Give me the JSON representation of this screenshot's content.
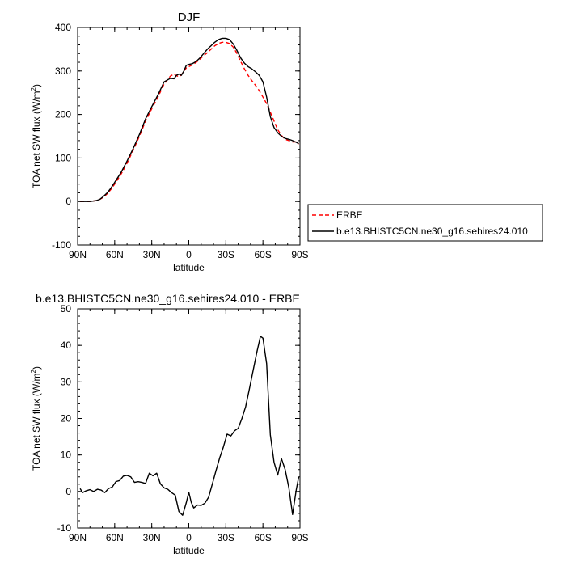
{
  "chart_data": [
    {
      "type": "line",
      "title": "DJF",
      "xlabel": "latitude",
      "ylabel_main": "TOA net SW flux (W/m",
      "ylabel_sup": "2",
      "ylabel_end": ")",
      "xlim": [
        90,
        -90
      ],
      "ylim": [
        -100,
        400
      ],
      "x_ticks": [
        90,
        60,
        30,
        0,
        -30,
        -60,
        -90
      ],
      "x_tick_labels": [
        "90N",
        "60N",
        "30N",
        "0",
        "30S",
        "60S",
        "90S"
      ],
      "y_ticks": [
        -100,
        0,
        100,
        200,
        300,
        400
      ],
      "y_tick_labels": [
        "-100",
        "0",
        "100",
        "200",
        "300",
        "400"
      ],
      "legend": {
        "position": "right",
        "entries": [
          "ERBE",
          "b.e13.BHISTC5CN.ne30_g16.sehires24.010"
        ]
      },
      "series": [
        {
          "name": "ERBE",
          "color": "#ff0000",
          "style": "dashed",
          "x": [
            88,
            85,
            80,
            75,
            72,
            69,
            66,
            63,
            60,
            55,
            50,
            45,
            40,
            35,
            30,
            25,
            20,
            15,
            12,
            10,
            8,
            6,
            4,
            2,
            0,
            -3,
            -6,
            -9,
            -12,
            -15,
            -18,
            -21,
            -24,
            -27,
            -30,
            -33,
            -36,
            -39,
            -42,
            -45,
            -48,
            -51,
            -54,
            -57,
            -60,
            -63,
            -66,
            -69,
            -72,
            -75,
            -78,
            -81,
            -84,
            -87,
            -89
          ],
          "y": [
            0,
            0,
            0,
            2,
            5,
            10,
            18,
            28,
            40,
            62,
            88,
            118,
            150,
            185,
            213,
            240,
            270,
            288,
            293,
            289,
            287,
            291,
            300,
            307,
            310,
            314,
            320,
            327,
            335,
            342,
            350,
            358,
            363,
            366,
            366,
            363,
            355,
            340,
            322,
            305,
            290,
            278,
            267,
            255,
            240,
            225,
            205,
            185,
            165,
            152,
            143,
            140,
            137,
            137,
            132
          ]
        },
        {
          "name": "b.e13.BHISTC5CN.ne30_g16.sehires24.010",
          "color": "#000000",
          "style": "solid",
          "x": [
            88,
            85,
            80,
            75,
            72,
            69,
            66,
            63,
            60,
            55,
            50,
            45,
            40,
            35,
            30,
            25,
            20,
            15,
            12,
            10,
            8,
            6,
            4,
            2,
            0,
            -3,
            -6,
            -9,
            -12,
            -15,
            -18,
            -21,
            -24,
            -27,
            -30,
            -33,
            -36,
            -39,
            -42,
            -45,
            -48,
            -51,
            -54,
            -57,
            -60,
            -63,
            -66,
            -69,
            -72,
            -75,
            -78,
            -81,
            -84,
            -87,
            -89
          ],
          "y": [
            0,
            0,
            0,
            2,
            5,
            12,
            20,
            31,
            44,
            66,
            93,
            122,
            154,
            190,
            218,
            245,
            275,
            283,
            282,
            290,
            293,
            290,
            300,
            313,
            315,
            317,
            322,
            330,
            340,
            350,
            358,
            366,
            372,
            375,
            375,
            372,
            362,
            347,
            330,
            318,
            310,
            305,
            298,
            290,
            275,
            240,
            195,
            170,
            158,
            150,
            145,
            143,
            140,
            136,
            133
          ]
        }
      ]
    },
    {
      "type": "line",
      "title": "b.e13.BHISTC5CN.ne30_g16.sehires24.010 - ERBE",
      "xlabel": "latitude",
      "ylabel_main": "TOA net SW flux (W/m",
      "ylabel_sup": "2",
      "ylabel_end": ")",
      "xlim": [
        90,
        -90
      ],
      "ylim": [
        -10,
        50
      ],
      "x_ticks": [
        90,
        60,
        30,
        0,
        -30,
        -60,
        -90
      ],
      "x_tick_labels": [
        "90N",
        "60N",
        "30N",
        "0",
        "30S",
        "60S",
        "90S"
      ],
      "y_ticks": [
        -10,
        0,
        10,
        20,
        30,
        40,
        50
      ],
      "y_tick_labels": [
        "-10",
        "0",
        "10",
        "20",
        "30",
        "40",
        "50"
      ],
      "series": [
        {
          "color": "#000000",
          "style": "solid",
          "x": [
            88,
            86,
            83,
            80,
            77,
            74,
            71,
            68,
            65,
            62,
            59,
            56,
            53,
            50,
            47,
            44,
            41,
            38,
            35,
            32,
            29,
            26,
            23,
            20,
            17,
            14,
            11,
            8,
            5,
            2,
            0,
            -2,
            -4,
            -7,
            -10,
            -13,
            -16,
            -19,
            -22,
            -25,
            -28,
            -31,
            -34,
            -37,
            -40,
            -43,
            -46,
            -49,
            -52,
            -55,
            -58,
            -60,
            -63,
            -66,
            -69,
            -72,
            -75,
            -78,
            -81,
            -84,
            -87,
            -89
          ],
          "y": [
            0.8,
            -0.3,
            0.2,
            0.5,
            0.0,
            0.6,
            0.4,
            -0.3,
            0.8,
            1.2,
            2.7,
            3.0,
            4.2,
            4.4,
            4.0,
            2.5,
            2.7,
            2.5,
            2.2,
            5.0,
            4.3,
            5.0,
            2.1,
            1.0,
            0.6,
            -0.3,
            -1.0,
            -5.5,
            -6.5,
            -3.0,
            -0.2,
            -3.0,
            -4.5,
            -3.7,
            -3.8,
            -3.2,
            -1.6,
            2.0,
            5.7,
            9.2,
            12.2,
            15.7,
            15.2,
            16.6,
            17.3,
            20.0,
            23.2,
            28.0,
            33.0,
            38.0,
            42.5,
            42.0,
            35.0,
            15.5,
            8.0,
            4.5,
            9.0,
            6.0,
            1.0,
            -6.3,
            0.5,
            4.0
          ]
        }
      ]
    }
  ]
}
